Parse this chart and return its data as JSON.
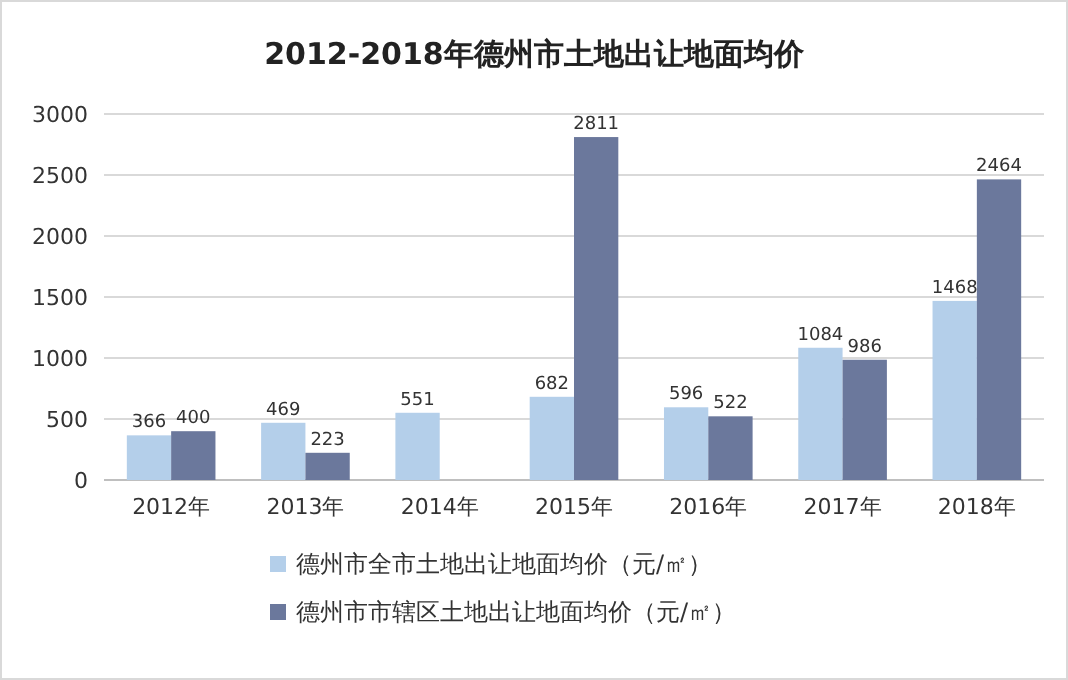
{
  "chart_data": {
    "type": "bar",
    "title": "2012-2018年德州市土地出让地面均价",
    "categories": [
      "2012年",
      "2013年",
      "2014年",
      "2015年",
      "2016年",
      "2017年",
      "2018年"
    ],
    "series": [
      {
        "name": "德州市全市土地出让地面均价（元/㎡）",
        "color": "#b4cfea",
        "values": [
          366,
          469,
          551,
          682,
          596,
          1084,
          1468
        ]
      },
      {
        "name": "德州市市辖区土地出让地面均价（元/㎡）",
        "color": "#6b789c",
        "values": [
          400,
          223,
          null,
          2811,
          522,
          986,
          2464
        ]
      }
    ],
    "ylim": [
      0,
      3000
    ],
    "yticks": [
      0,
      500,
      1000,
      1500,
      2000,
      2500,
      3000
    ],
    "grid": "y",
    "legend": "bottom",
    "data_labels": true
  }
}
